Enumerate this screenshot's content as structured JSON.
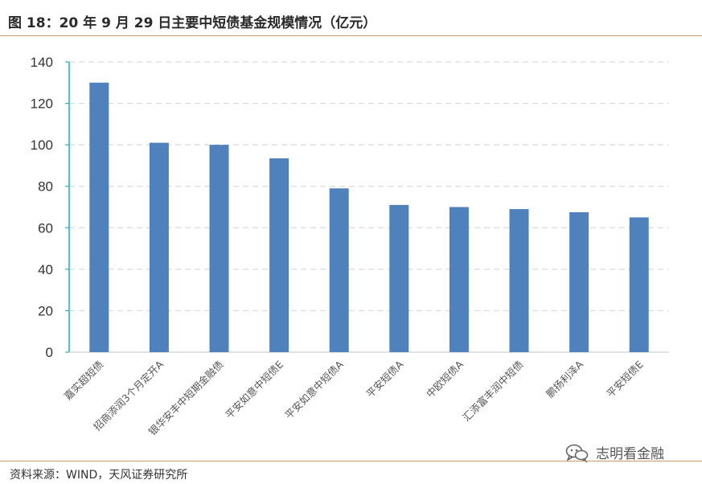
{
  "header": {
    "title": "图 18：20 年 9 月 29 日主要中短债基金规模情况（亿元）"
  },
  "footer": {
    "source": "资料来源：WIND，天风证券研究所"
  },
  "watermark": {
    "text": "志明看金融",
    "icon": "wechat-bubbles-icon"
  },
  "colors": {
    "bar": "#4f81bd",
    "rule": "#c8a06a",
    "grid": "#d9d9d9",
    "axis": "#2bb0c8"
  },
  "chart_data": {
    "type": "bar",
    "categories": [
      "嘉实超短债",
      "招商添润3个月定开A",
      "银华安丰中短期金融债",
      "平安如意中短债E",
      "平安如意中短债A",
      "平安短债A",
      "中欧短债A",
      "汇添富丰润中短债",
      "鹏扬利泽A",
      "平安短债E"
    ],
    "values": [
      130,
      101,
      100,
      93.5,
      79,
      71,
      70,
      69,
      67.5,
      65
    ],
    "ylim": [
      0,
      140
    ],
    "yticks": [
      0,
      20,
      40,
      60,
      80,
      100,
      120,
      140
    ],
    "grid": true,
    "legend": "none"
  }
}
